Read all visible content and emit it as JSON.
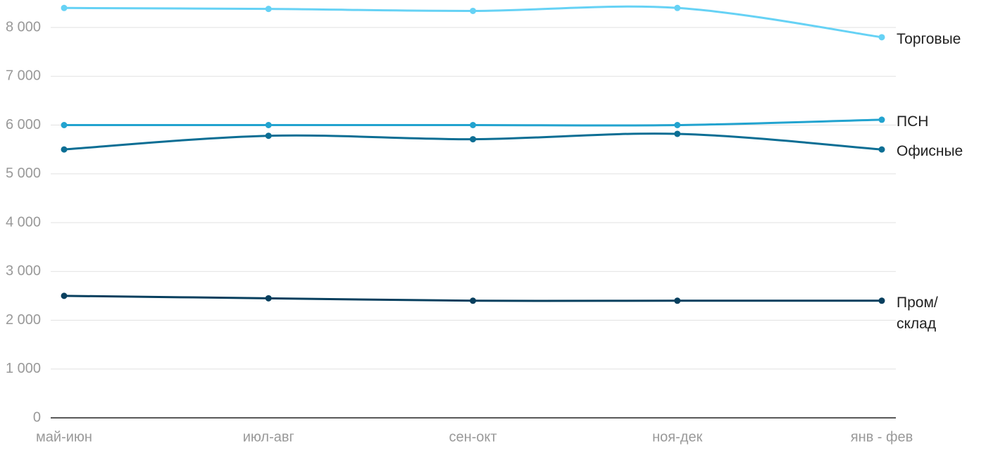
{
  "chart_data": {
    "type": "line",
    "categories": [
      "май-июн",
      "июл-авг",
      "сен-окт",
      "ноя-дек",
      "янв - фев"
    ],
    "series": [
      {
        "name": "Торговые",
        "color": "#66d2f5",
        "values": [
          8400,
          8380,
          8340,
          8400,
          7800
        ]
      },
      {
        "name": "ПСН",
        "color": "#22a3cf",
        "values": [
          6000,
          6000,
          6000,
          6000,
          6110
        ]
      },
      {
        "name": "Офисные",
        "color": "#0c6e94",
        "values": [
          5500,
          5780,
          5710,
          5820,
          5500
        ]
      },
      {
        "name": "Пром/ склад",
        "color": "#073f5e",
        "values": [
          2500,
          2450,
          2400,
          2400,
          2400
        ]
      }
    ],
    "ylim": [
      0,
      8400
    ],
    "yticks": [
      0,
      {
        "value": 1000,
        "label": "1 000"
      },
      {
        "value": 2000,
        "label": "2 000"
      },
      {
        "value": 3000,
        "label": "3 000"
      },
      {
        "value": 4000,
        "label": "4 000"
      },
      {
        "value": 5000,
        "label": "5 000"
      },
      {
        "value": 6000,
        "label": "6 000"
      },
      {
        "value": 7000,
        "label": "7 000"
      },
      {
        "value": 8000,
        "label": "8 000"
      }
    ],
    "grid": true,
    "legend": "right"
  }
}
